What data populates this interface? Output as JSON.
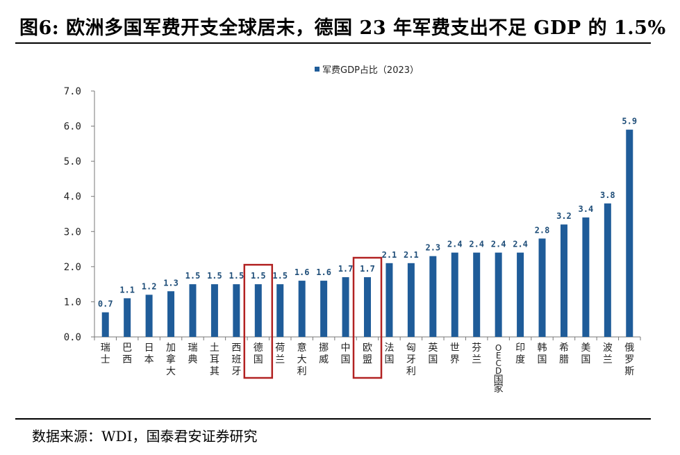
{
  "header": {
    "title": "图6: 欧洲多国军费开支全球居末，德国 23 年军费支出不足 GDP 的 1.5%"
  },
  "footer": {
    "source": "数据来源：WDI，国泰君安证券研究"
  },
  "chart_data": {
    "type": "bar",
    "categories": [
      "瑞士",
      "巴西",
      "日本",
      "加拿大",
      "瑞典",
      "土耳其",
      "西班牙",
      "德国",
      "荷兰",
      "意大利",
      "挪威",
      "中国",
      "欧盟",
      "法国",
      "匈牙利",
      "英国",
      "世界",
      "芬兰",
      "OECD国家",
      "印度",
      "韩国",
      "希腊",
      "美国",
      "波兰",
      "俄罗斯"
    ],
    "series": [
      {
        "name": "军费GDP占比（2023）",
        "values": [
          0.7,
          1.1,
          1.2,
          1.3,
          1.5,
          1.5,
          1.5,
          1.5,
          1.5,
          1.6,
          1.6,
          1.7,
          1.7,
          2.1,
          2.1,
          2.3,
          2.4,
          2.4,
          2.4,
          2.4,
          2.8,
          3.2,
          3.4,
          3.8,
          5.9
        ],
        "data_labels": [
          "0.7",
          "1.1",
          "1.2",
          "1.3",
          "1.5",
          "1.5",
          "1.5",
          "1.5",
          "1.5",
          "1.6",
          "1.6",
          "1.7",
          "1.7",
          "2.1",
          "2.1",
          "2.3",
          "2.4",
          "2.4",
          "2.4",
          "2.4",
          "2.8",
          "3.2",
          "3.4",
          "3.8",
          "5.9"
        ]
      }
    ],
    "yticks": [
      "0.0",
      "1.0",
      "2.0",
      "3.0",
      "4.0",
      "5.0",
      "6.0",
      "7.0"
    ],
    "ylim": [
      0,
      7
    ],
    "highlighted_categories": [
      "德国",
      "欧盟"
    ],
    "bar_color": "#1f5c99",
    "highlight_color": "#b22222",
    "legend_position": "top-center",
    "grid": false
  }
}
